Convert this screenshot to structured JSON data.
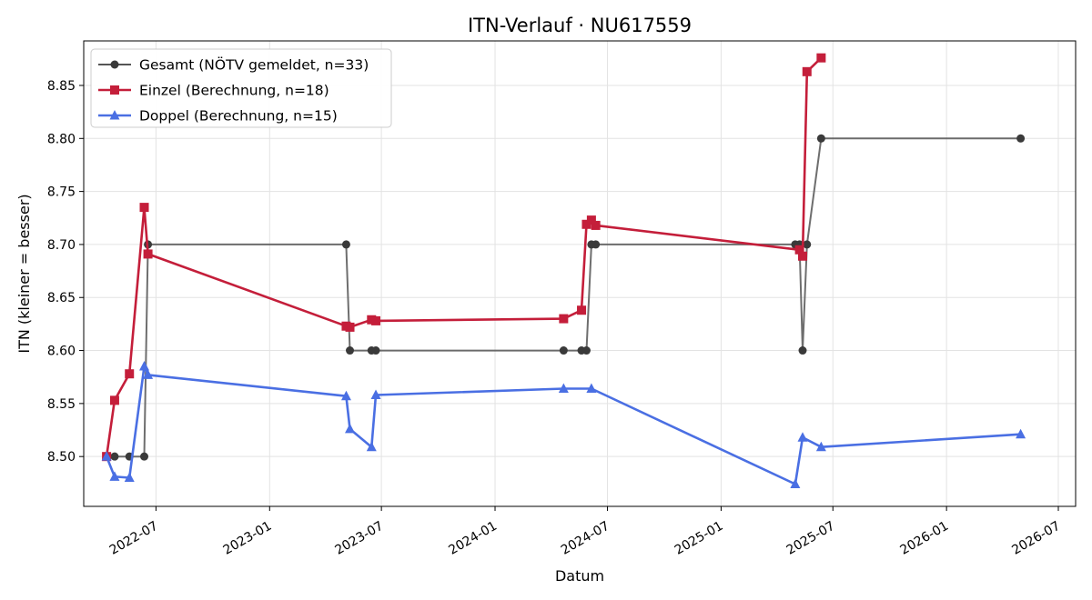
{
  "chart_data": {
    "type": "line",
    "title": "ITN-Verlauf · NU617559",
    "xlabel": "Datum",
    "ylabel": "ITN  (kleiner = besser)",
    "xlim": [
      "2022-03-06",
      "2026-07-29"
    ],
    "ylim": [
      8.453,
      8.892
    ],
    "x_ticks": [
      "2022-07",
      "2023-01",
      "2023-07",
      "2024-01",
      "2024-07",
      "2025-01",
      "2025-07",
      "2026-01",
      "2026-07"
    ],
    "y_ticks": [
      8.5,
      8.55,
      8.6,
      8.65,
      8.7,
      8.75,
      8.8,
      8.85
    ],
    "grid": true,
    "legend_position": "upper-left",
    "series": [
      {
        "name": "Gesamt (NÖTV gemeldet, n=33)",
        "color": "#555555",
        "marker": "circle",
        "points": [
          [
            "2022-04-12",
            8.5
          ],
          [
            "2022-04-25",
            8.5
          ],
          [
            "2022-05-19",
            8.5
          ],
          [
            "2022-06-12",
            8.5
          ],
          [
            "2022-06-18",
            8.7
          ],
          [
            "2023-05-05",
            8.7
          ],
          [
            "2023-05-11",
            8.6
          ],
          [
            "2023-06-15",
            8.6
          ],
          [
            "2023-06-22",
            8.6
          ],
          [
            "2024-04-21",
            8.6
          ],
          [
            "2024-05-20",
            8.6
          ],
          [
            "2024-05-28",
            8.6
          ],
          [
            "2024-06-05",
            8.7
          ],
          [
            "2024-06-12",
            8.7
          ],
          [
            "2025-05-01",
            8.7
          ],
          [
            "2025-05-08",
            8.7
          ],
          [
            "2025-05-13",
            8.6
          ],
          [
            "2025-05-20",
            8.7
          ],
          [
            "2025-06-12",
            8.8
          ],
          [
            "2026-05-01",
            8.8
          ]
        ]
      },
      {
        "name": "Einzel (Berechnung, n=18)",
        "color": "#c41e3a",
        "marker": "square",
        "points": [
          [
            "2022-04-12",
            8.5
          ],
          [
            "2022-04-25",
            8.553
          ],
          [
            "2022-05-19",
            8.578
          ],
          [
            "2022-06-12",
            8.735
          ],
          [
            "2022-06-18",
            8.691
          ],
          [
            "2023-05-05",
            8.623
          ],
          [
            "2023-05-11",
            8.622
          ],
          [
            "2023-06-15",
            8.629
          ],
          [
            "2023-06-22",
            8.628
          ],
          [
            "2024-04-21",
            8.63
          ],
          [
            "2024-05-20",
            8.638
          ],
          [
            "2024-05-28",
            8.719
          ],
          [
            "2024-06-05",
            8.723
          ],
          [
            "2024-06-12",
            8.718
          ],
          [
            "2025-05-08",
            8.695
          ],
          [
            "2025-05-13",
            8.689
          ],
          [
            "2025-05-20",
            8.863
          ],
          [
            "2025-06-12",
            8.876
          ]
        ]
      },
      {
        "name": "Doppel (Berechnung, n=15)",
        "color": "#4a6fe3",
        "marker": "triangle",
        "points": [
          [
            "2022-04-12",
            8.5
          ],
          [
            "2022-04-25",
            8.481
          ],
          [
            "2022-05-19",
            8.48
          ],
          [
            "2022-06-12",
            8.585
          ],
          [
            "2022-06-18",
            8.577
          ],
          [
            "2023-05-05",
            8.557
          ],
          [
            "2023-05-11",
            8.526
          ],
          [
            "2023-06-15",
            8.509
          ],
          [
            "2023-06-22",
            8.558
          ],
          [
            "2024-04-21",
            8.564
          ],
          [
            "2024-06-05",
            8.564
          ],
          [
            "2025-05-01",
            8.474
          ],
          [
            "2025-05-13",
            8.518
          ],
          [
            "2025-06-12",
            8.509
          ],
          [
            "2026-05-01",
            8.521
          ]
        ]
      }
    ]
  }
}
